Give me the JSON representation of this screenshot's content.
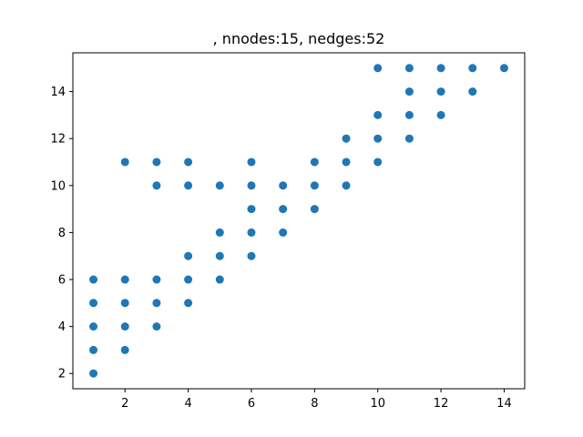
{
  "chart_data": {
    "type": "scatter",
    "title": ", nnodes:15, nedges:52",
    "xlabel": "",
    "ylabel": "",
    "xlim": [
      0.35,
      14.65
    ],
    "ylim": [
      1.35,
      15.65
    ],
    "xticks": [
      2,
      4,
      6,
      8,
      10,
      12,
      14
    ],
    "yticks": [
      2,
      4,
      6,
      8,
      10,
      12,
      14
    ],
    "grid": false,
    "marker_color": "#1f77b4",
    "series": [
      {
        "points": [
          [
            1,
            2
          ],
          [
            1,
            3
          ],
          [
            1,
            4
          ],
          [
            1,
            5
          ],
          [
            1,
            6
          ],
          [
            2,
            3
          ],
          [
            2,
            4
          ],
          [
            2,
            5
          ],
          [
            2,
            6
          ],
          [
            2,
            11
          ],
          [
            3,
            4
          ],
          [
            3,
            5
          ],
          [
            3,
            6
          ],
          [
            3,
            10
          ],
          [
            3,
            11
          ],
          [
            4,
            5
          ],
          [
            4,
            6
          ],
          [
            4,
            7
          ],
          [
            4,
            10
          ],
          [
            4,
            11
          ],
          [
            5,
            6
          ],
          [
            5,
            7
          ],
          [
            5,
            8
          ],
          [
            5,
            10
          ],
          [
            6,
            7
          ],
          [
            6,
            8
          ],
          [
            6,
            9
          ],
          [
            6,
            10
          ],
          [
            6,
            11
          ],
          [
            7,
            8
          ],
          [
            7,
            9
          ],
          [
            7,
            10
          ],
          [
            8,
            9
          ],
          [
            8,
            10
          ],
          [
            8,
            11
          ],
          [
            9,
            10
          ],
          [
            9,
            11
          ],
          [
            9,
            12
          ],
          [
            10,
            11
          ],
          [
            10,
            12
          ],
          [
            10,
            13
          ],
          [
            10,
            15
          ],
          [
            11,
            12
          ],
          [
            11,
            13
          ],
          [
            11,
            14
          ],
          [
            11,
            15
          ],
          [
            12,
            13
          ],
          [
            12,
            14
          ],
          [
            12,
            15
          ],
          [
            13,
            14
          ],
          [
            13,
            15
          ],
          [
            14,
            15
          ]
        ]
      }
    ]
  }
}
